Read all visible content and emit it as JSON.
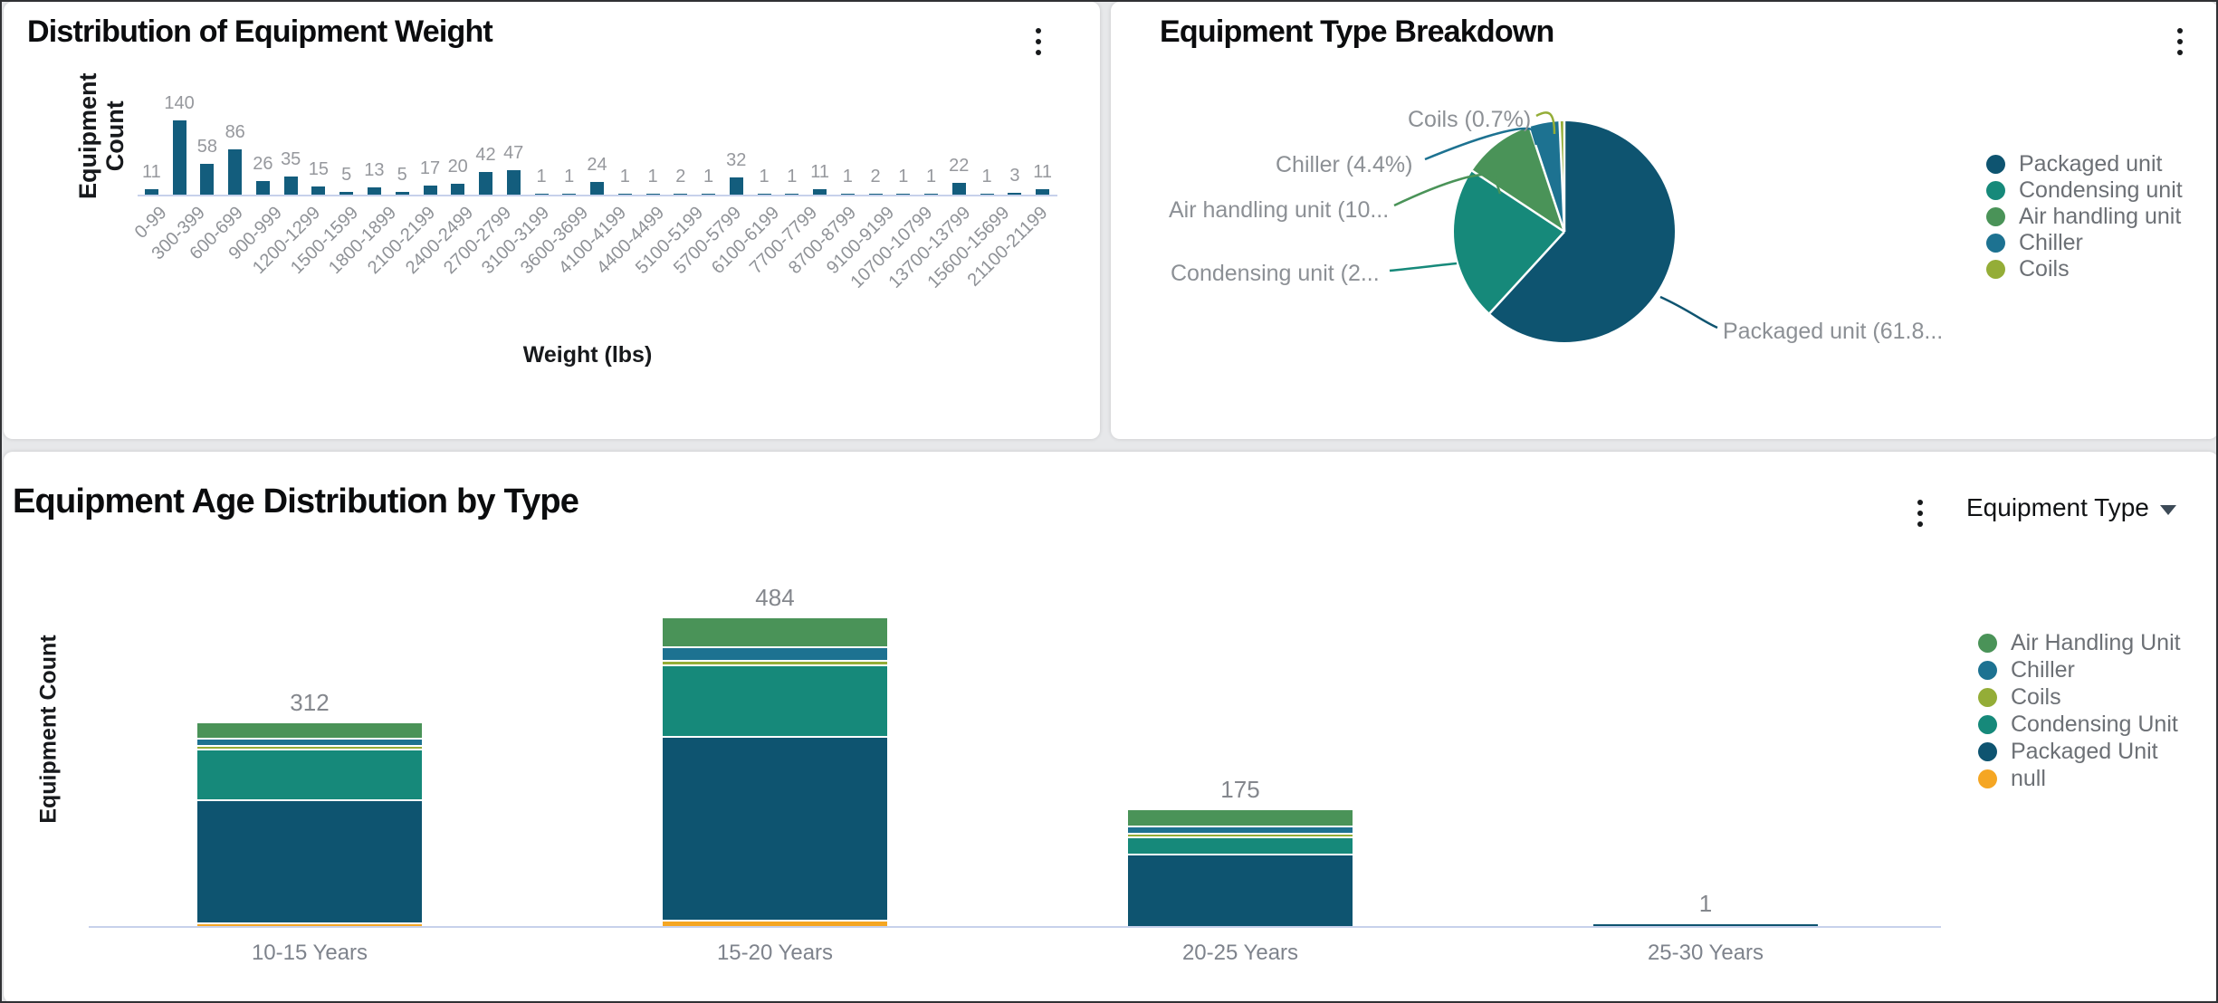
{
  "page": {
    "background": "#e7e8ea"
  },
  "cards": {
    "weight": {
      "title": "Distribution of Equipment Weight"
    },
    "type": {
      "title": "Equipment Type Breakdown"
    },
    "age": {
      "title": "Equipment Age Distribution by Type",
      "dropdown_label": "Equipment Type"
    }
  },
  "chart_data": [
    {
      "id": "weight_histogram",
      "type": "bar",
      "title": "Distribution of Equipment Weight",
      "xlabel": "Weight (lbs)",
      "ylabel": "Equipment Count",
      "bar_color": "#135d7d",
      "values": [
        11,
        140,
        58,
        86,
        26,
        35,
        15,
        5,
        13,
        5,
        17,
        20,
        42,
        47,
        1,
        1,
        24,
        1,
        1,
        2,
        1,
        32,
        1,
        1,
        11,
        1,
        2,
        1,
        1,
        22,
        1,
        3,
        11
      ],
      "x_tick_labels": [
        "0-99",
        "300-399",
        "600-699",
        "900-999",
        "1200-1299",
        "1500-1599",
        "1800-1899",
        "2100-2199",
        "2400-2499",
        "2700-2799",
        "3100-3199",
        "3600-3699",
        "4100-4199",
        "4400-4499",
        "5100-5199",
        "5700-5799",
        "6100-6199",
        "7700-7799",
        "8700-8799",
        "9100-9199",
        "10700-10799",
        "13700-13799",
        "15600-15699",
        "21100-21199"
      ],
      "grid": false,
      "data_labels_shown": true
    },
    {
      "id": "equipment_type_pie",
      "type": "pie",
      "title": "Equipment Type Breakdown",
      "legend_position": "right",
      "slices": [
        {
          "label": "Packaged unit",
          "pct": 61.8,
          "color": "#0e5470",
          "callout_text": "Packaged unit (61.8..."
        },
        {
          "label": "Condensing unit",
          "pct": 22.5,
          "color": "#16897a",
          "callout_text": "Condensing unit (2..."
        },
        {
          "label": "Air handling unit",
          "pct": 10.6,
          "color": "#4a9358",
          "callout_text": "Air handling unit (10..."
        },
        {
          "label": "Chiller",
          "pct": 4.4,
          "color": "#1d7291",
          "callout_text": "Chiller (4.4%)"
        },
        {
          "label": "Coils",
          "pct": 0.7,
          "color": "#94ad37",
          "callout_text": "Coils (0.7%)"
        }
      ]
    },
    {
      "id": "age_stacked_bar",
      "type": "bar",
      "title": "Equipment Age Distribution by Type",
      "ylabel": "Equipment Count",
      "legend_position": "right",
      "categories": [
        "10-15 Years",
        "15-20 Years",
        "20-25 Years",
        "25-30 Years"
      ],
      "totals": [
        312,
        484,
        175,
        1
      ],
      "stack_order_top_to_bottom": [
        "Air Handling Unit",
        "Chiller",
        "Coils",
        "Condensing Unit",
        "Packaged Unit",
        "null"
      ],
      "series": [
        {
          "name": "Air Handling Unit",
          "color": "#4a9358",
          "values": [
            23,
            46,
            25,
            0
          ]
        },
        {
          "name": "Chiller",
          "color": "#1d7291",
          "values": [
            10,
            19,
            8,
            0
          ]
        },
        {
          "name": "Coils",
          "color": "#94ad37",
          "values": [
            2,
            4,
            2,
            0
          ]
        },
        {
          "name": "Condensing Unit",
          "color": "#16897a",
          "values": [
            78,
            113,
            26,
            0
          ]
        },
        {
          "name": "Packaged Unit",
          "color": "#0e5470",
          "values": [
            197,
            295,
            114,
            1
          ]
        },
        {
          "name": "null",
          "color": "#f5a623",
          "values": [
            2,
            7,
            0,
            0
          ]
        }
      ]
    }
  ]
}
